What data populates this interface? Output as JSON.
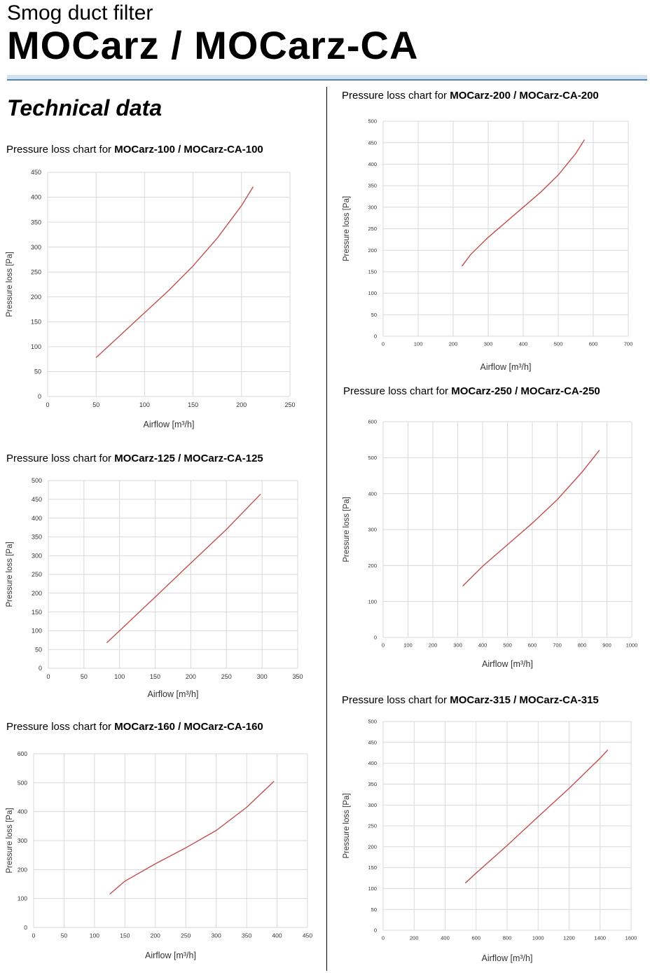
{
  "header": {
    "subtitle": "Smog duct filter",
    "title": "MOCarz / MOCarz-CA",
    "section_title": "Technical data"
  },
  "chart_data": [
    {
      "type": "line",
      "title_prefix": "Pressure loss chart for ",
      "title_model": "MOCarz-100 / MOCarz-CA-100",
      "xlabel": "Airflow [m³/h]",
      "ylabel": "Pressure loss [Pa]",
      "xlim": [
        0,
        250
      ],
      "ylim": [
        0,
        450
      ],
      "xticks": [
        0,
        50,
        100,
        150,
        200,
        250
      ],
      "yticks": [
        0,
        50,
        100,
        150,
        200,
        250,
        300,
        350,
        400,
        450
      ],
      "grid": true,
      "color": "#c0504d",
      "x": [
        50,
        75,
        100,
        125,
        150,
        175,
        200,
        212
      ],
      "y": [
        78,
        123,
        168,
        213,
        262,
        318,
        383,
        421
      ]
    },
    {
      "type": "line",
      "title_prefix": "Pressure loss chart for ",
      "title_model": "MOCarz-125 / MOCarz-CA-125",
      "xlabel": "Airflow [m³/h]",
      "ylabel": "Pressure loss [Pa]",
      "xlim": [
        0,
        350
      ],
      "ylim": [
        0,
        500
      ],
      "xticks": [
        0,
        50,
        100,
        150,
        200,
        250,
        300,
        350
      ],
      "yticks": [
        0,
        50,
        100,
        150,
        200,
        250,
        300,
        350,
        400,
        450,
        500
      ],
      "grid": true,
      "color": "#c0504d",
      "x": [
        82,
        100,
        150,
        200,
        250,
        298
      ],
      "y": [
        68,
        100,
        190,
        280,
        370,
        464
      ]
    },
    {
      "type": "line",
      "title_prefix": "Pressure loss chart for ",
      "title_model": "MOCarz-160 / MOCarz-CA-160",
      "xlabel": "Airflow [m³/h]",
      "ylabel": "Pressure loss [Pa]",
      "xlim": [
        0,
        450
      ],
      "ylim": [
        0,
        600
      ],
      "xticks": [
        0,
        50,
        100,
        150,
        200,
        250,
        300,
        350,
        400,
        450
      ],
      "yticks": [
        0,
        100,
        200,
        300,
        400,
        500,
        600
      ],
      "grid": true,
      "color": "#c0504d",
      "x": [
        125,
        150,
        200,
        250,
        300,
        350,
        395
      ],
      "y": [
        115,
        160,
        220,
        275,
        335,
        415,
        505
      ]
    },
    {
      "type": "line",
      "title_prefix": "Pressure loss chart for ",
      "title_model": "MOCarz-200 / MOCarz-CA-200",
      "xlabel": "Airflow [m³/h]",
      "ylabel": "Pressure loss [Pa]",
      "xlim": [
        0,
        700
      ],
      "ylim": [
        0,
        500
      ],
      "xticks": [
        0,
        100,
        200,
        300,
        400,
        500,
        600,
        700
      ],
      "yticks": [
        0,
        50,
        100,
        150,
        200,
        250,
        300,
        350,
        400,
        450,
        500
      ],
      "grid": true,
      "color": "#c0504d",
      "x": [
        225,
        250,
        300,
        350,
        400,
        450,
        500,
        550,
        575
      ],
      "y": [
        163,
        190,
        230,
        265,
        300,
        335,
        375,
        425,
        457
      ]
    },
    {
      "type": "line",
      "title_prefix": "Pressure loss chart for ",
      "title_model": "MOCarz-250 / MOCarz-CA-250",
      "xlabel": "Airflow [m³/h]",
      "ylabel": "Pressure loss [Pa]",
      "xlim": [
        0,
        1000
      ],
      "ylim": [
        0,
        600
      ],
      "xticks": [
        0,
        100,
        200,
        300,
        400,
        500,
        600,
        700,
        800,
        900,
        1000
      ],
      "yticks": [
        0,
        100,
        200,
        300,
        400,
        500,
        600
      ],
      "grid": true,
      "color": "#c0504d",
      "x": [
        320,
        400,
        500,
        600,
        700,
        800,
        870
      ],
      "y": [
        143,
        198,
        258,
        318,
        383,
        460,
        521
      ]
    },
    {
      "type": "line",
      "title_prefix": "Pressure loss chart for ",
      "title_model": "MOCarz-315 / MOCarz-CA-315",
      "xlabel": "Airflow [m³/h]",
      "ylabel": "Pressure loss [Pa]",
      "xlim": [
        0,
        1600
      ],
      "ylim": [
        0,
        500
      ],
      "xticks": [
        0,
        200,
        400,
        600,
        800,
        1000,
        1200,
        1400,
        1600
      ],
      "yticks": [
        0,
        50,
        100,
        150,
        200,
        250,
        300,
        350,
        400,
        450,
        500
      ],
      "grid": true,
      "color": "#c0504d",
      "x": [
        530,
        600,
        800,
        1000,
        1200,
        1400,
        1450
      ],
      "y": [
        113,
        137,
        203,
        272,
        340,
        412,
        432
      ]
    }
  ]
}
